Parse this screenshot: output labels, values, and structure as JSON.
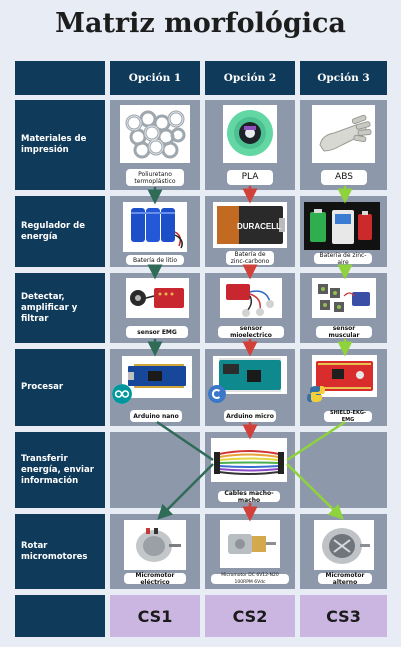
{
  "title": "Matriz morfológica",
  "columns": [
    "Opción 1",
    "Opción 2",
    "Opción 3"
  ],
  "rows": [
    {
      "label": "Materiales de impresión",
      "options": [
        "Poliuretano termoplástico",
        "PLA",
        "ABS"
      ]
    },
    {
      "label": "Regulador de energía",
      "options": [
        "Batería de litio",
        "Batería de zinc-carbono",
        "Batería de zinc-aire"
      ]
    },
    {
      "label": "Detectar, amplificar y filtrar",
      "options": [
        "sensor EMG",
        "sensor mioelectrico",
        "sensor muscular"
      ]
    },
    {
      "label": "Procesar",
      "options": [
        "Arduino nano",
        "Arduino micro",
        "SHIELD-EKG-EMG"
      ]
    },
    {
      "label": "Transferir energía, enviar información",
      "options": [
        "",
        "Cables macho-macho",
        ""
      ]
    },
    {
      "label": "Rotar micromotores",
      "options": [
        "Micromotor eléctrico",
        "Micromotor DC 6V12-N20 100RPM 6Vdc",
        "Micromotor alterno"
      ]
    }
  ],
  "solutions": [
    "CS1",
    "CS2",
    "CS3"
  ],
  "image_labels": {
    "battery_brand": "DURACELL"
  },
  "colors": {
    "cs1": "#2f6b57",
    "cs2": "#d2403a",
    "cs3": "#8ed23c",
    "header": "#0f3a5a",
    "cell": "#8e98ab",
    "solution": "#cbb6e2"
  }
}
